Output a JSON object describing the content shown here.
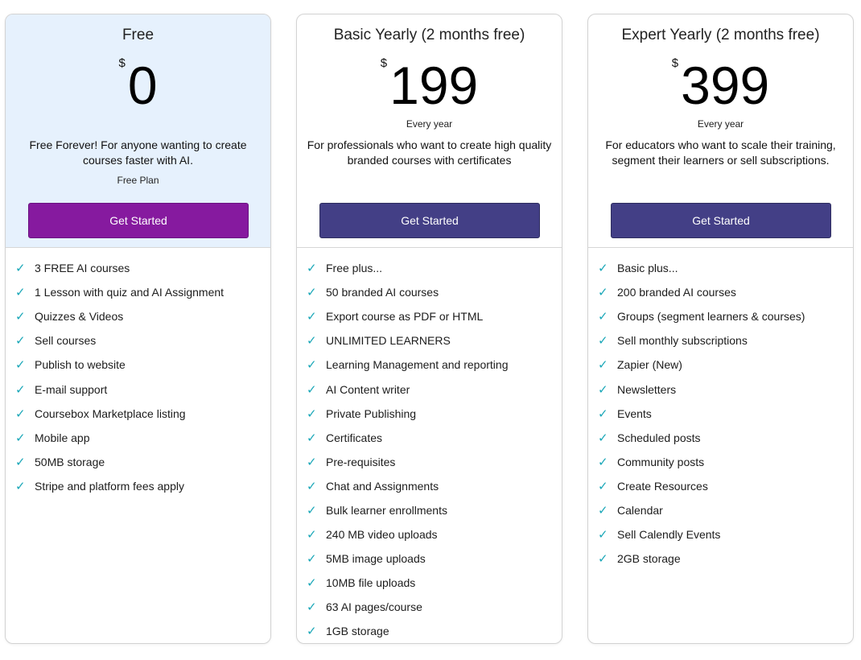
{
  "colors": {
    "free_header_bg": "#e6f1fd",
    "free_button": "#861a9f",
    "paid_button": "#433f86",
    "check": "#1aa7b8"
  },
  "icons": {
    "check": "check-icon"
  },
  "plans": [
    {
      "title": "Free",
      "currency": "$",
      "price": "0",
      "period": "",
      "description": "Free Forever! For anyone wanting to create courses faster with AI.",
      "tag": "Free Plan",
      "button_label": "Get Started",
      "features": [
        "3 FREE AI courses",
        "1 Lesson with quiz and AI Assignment",
        "Quizzes & Videos",
        "Sell courses",
        "Publish to website",
        "E-mail support",
        "Coursebox Marketplace listing",
        "Mobile app",
        "50MB storage",
        "Stripe and platform fees apply"
      ]
    },
    {
      "title": "Basic Yearly (2 months free)",
      "currency": "$",
      "price": "199",
      "period": "Every year",
      "description": "For professionals who want to create high quality branded courses with certificates",
      "tag": "",
      "button_label": "Get Started",
      "features": [
        "Free plus...",
        "50 branded AI courses",
        "Export course as PDF or HTML",
        "UNLIMITED LEARNERS",
        "Learning Management and reporting",
        "AI Content writer",
        "Private Publishing",
        "Certificates",
        "Pre-requisites",
        "Chat and Assignments",
        "Bulk learner enrollments",
        "240 MB video uploads",
        "5MB image uploads",
        "10MB file uploads",
        "63 AI pages/course",
        "1GB storage"
      ]
    },
    {
      "title": "Expert Yearly (2 months free)",
      "currency": "$",
      "price": "399",
      "period": "Every year",
      "description": "For educators who want to scale their training, segment their learners or sell subscriptions.",
      "tag": "",
      "button_label": "Get Started",
      "features": [
        "Basic plus...",
        "200 branded AI courses",
        "Groups (segment learners & courses)",
        "Sell monthly subscriptions",
        "Zapier (New)",
        "Newsletters",
        "Events",
        "Scheduled posts",
        "Community posts",
        "Create Resources",
        "Calendar",
        "Sell Calendly Events",
        "2GB storage"
      ]
    }
  ]
}
